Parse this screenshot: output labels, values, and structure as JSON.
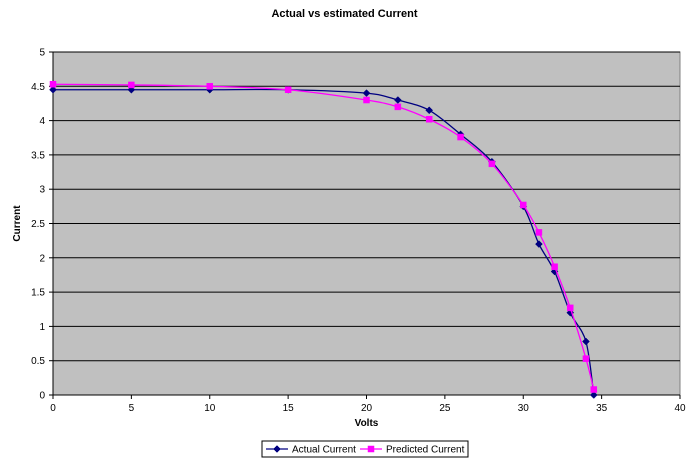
{
  "chart_data": {
    "type": "line",
    "title": "Actual vs estimated Current",
    "xlabel": "Volts",
    "ylabel": "Current",
    "xlim": [
      0,
      40
    ],
    "ylim": [
      0,
      5
    ],
    "x_ticks": [
      0,
      5,
      10,
      15,
      20,
      25,
      30,
      35,
      40
    ],
    "y_ticks": [
      0,
      0.5,
      1,
      1.5,
      2,
      2.5,
      3,
      3.5,
      4,
      4.5,
      5
    ],
    "x_tick_labels": [
      "0",
      "5",
      "10",
      "15",
      "20",
      "25",
      "30",
      "35",
      "40"
    ],
    "y_tick_labels": [
      "0",
      "0.5",
      "1",
      "1.5",
      "2",
      "2.5",
      "3",
      "3.5",
      "4",
      "4.5",
      "5"
    ],
    "grid": "horizontal",
    "plot_background": "#c0c0c0",
    "legend_position": "bottom",
    "series": [
      {
        "name": "Actual Current",
        "color": "#000080",
        "marker": "diamond",
        "x": [
          0,
          5,
          10,
          15,
          20,
          22,
          24,
          26,
          28,
          30,
          31,
          32,
          33,
          34,
          34.5
        ],
        "y": [
          4.45,
          4.45,
          4.45,
          4.45,
          4.4,
          4.3,
          4.15,
          3.8,
          3.4,
          2.75,
          2.2,
          1.8,
          1.2,
          0.78,
          0
        ]
      },
      {
        "name": "Predicted Current",
        "color": "#ff00ff",
        "marker": "square",
        "x": [
          0,
          5,
          10,
          15,
          20,
          22,
          24,
          26,
          28,
          30,
          31,
          32,
          33,
          34,
          34.5
        ],
        "y": [
          4.53,
          4.52,
          4.5,
          4.45,
          4.3,
          4.2,
          4.02,
          3.76,
          3.37,
          2.77,
          2.37,
          1.87,
          1.27,
          0.53,
          0.08
        ]
      }
    ]
  }
}
